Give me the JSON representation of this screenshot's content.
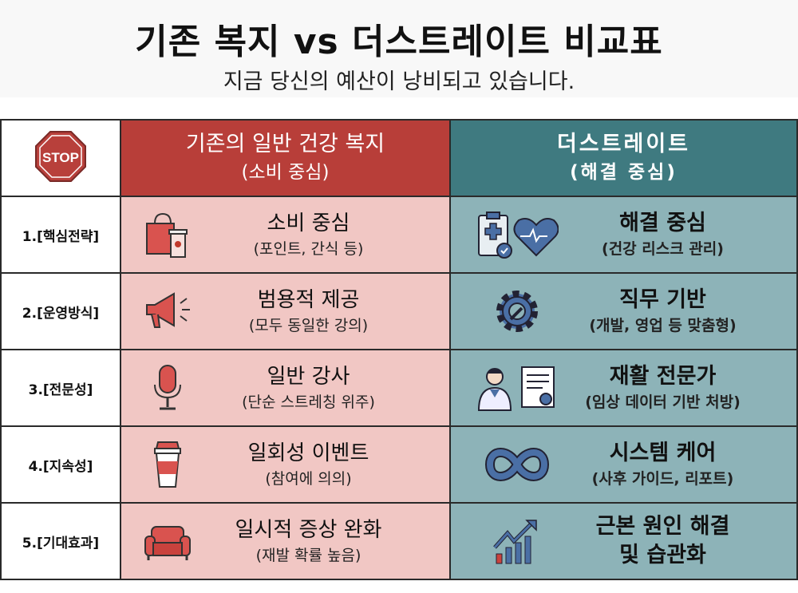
{
  "header": {
    "title": "기존 복지 vs 더스트레이트 비교표",
    "subtitle": "지금 당신의 예산이 낭비되고 있습니다."
  },
  "table": {
    "stop_label": "STOP",
    "columns": [
      {
        "title": "기존의 일반 건강 복지",
        "subtitle": "(소비 중심)",
        "color": "#b83e39"
      },
      {
        "title": "더스트레이트",
        "subtitle": "(해결 중심)",
        "color": "#3f7a80"
      }
    ],
    "rows": [
      {
        "label": "1.[핵심전략]",
        "left": {
          "main": "소비 중심",
          "sub": "(포인트, 간식 등)",
          "icon": "shopping-bag-coffee-icon"
        },
        "right": {
          "main": "해결 중심",
          "sub": "(건강 리스크 관리)",
          "icon": "clipboard-heart-icon"
        }
      },
      {
        "label": "2.[운영방식]",
        "left": {
          "main": "범용적 제공",
          "sub": "(모두 동일한 강의)",
          "icon": "megaphone-icon"
        },
        "right": {
          "main": "직무 기반",
          "sub": "(개발, 영업 등 맞춤형)",
          "icon": "gear-wrench-icon"
        }
      },
      {
        "label": "3.[전문성]",
        "left": {
          "main": "일반 강사",
          "sub": "(단순 스트레칭 위주)",
          "icon": "microphone-icon"
        },
        "right": {
          "main": "재활 전문가",
          "sub": "(임상 데이터 기반 처방)",
          "icon": "doctor-certificate-icon"
        }
      },
      {
        "label": "4.[지속성]",
        "left": {
          "main": "일회성 이벤트",
          "sub": "(참여에 의의)",
          "icon": "paper-cup-icon"
        },
        "right": {
          "main": "시스템 케어",
          "sub": "(사후 가이드, 리포트)",
          "icon": "infinity-icon"
        }
      },
      {
        "label": "5.[기대효과]",
        "left": {
          "main": "일시적 증상 완화",
          "sub": "(재발 확률 높음)",
          "icon": "sofa-icon"
        },
        "right": {
          "main": "근본 원인 해결",
          "sub": "및 습관화",
          "icon": "growth-chart-icon"
        }
      }
    ]
  }
}
